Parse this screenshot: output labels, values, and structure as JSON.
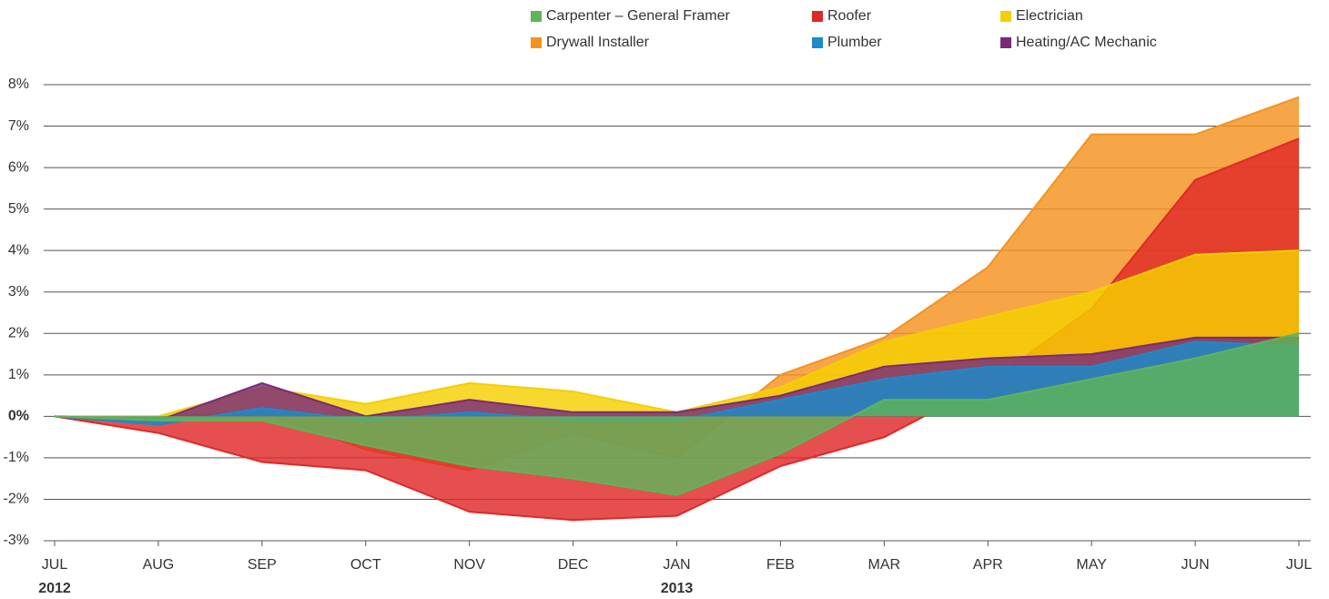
{
  "chart_data": {
    "type": "area",
    "categories": [
      "JUL",
      "AUG",
      "SEP",
      "OCT",
      "NOV",
      "DEC",
      "JAN",
      "FEB",
      "MAR",
      "APR",
      "MAY",
      "JUN",
      "JUL"
    ],
    "x_sublabels": [
      "2012",
      null,
      null,
      null,
      null,
      null,
      "2013",
      null,
      null,
      null,
      null,
      null,
      null
    ],
    "series": [
      {
        "name": "Carpenter – General Framer",
        "color": "#5fb45a",
        "values": [
          0,
          -0.1,
          -0.1,
          -0.7,
          -1.2,
          -1.5,
          -1.9,
          -0.9,
          0.4,
          0.4,
          0.9,
          1.4,
          2.0
        ]
      },
      {
        "name": "Roofer",
        "color": "#e02828",
        "values": [
          0,
          -0.4,
          -1.1,
          -1.3,
          -2.3,
          -2.5,
          -2.4,
          -1.2,
          -0.5,
          0.8,
          2.6,
          5.7,
          6.7
        ]
      },
      {
        "name": "Electrician",
        "color": "#f5cf00",
        "values": [
          0,
          0,
          0.7,
          0.3,
          0.8,
          0.6,
          0.1,
          0.7,
          1.8,
          2.4,
          3.0,
          3.9,
          4.0
        ]
      },
      {
        "name": "Drywall Installer",
        "color": "#f5921e",
        "values": [
          0,
          0,
          0.1,
          -0.8,
          -1.3,
          -0.4,
          -1.0,
          1.0,
          1.9,
          3.6,
          6.8,
          6.8,
          7.7
        ]
      },
      {
        "name": "Plumber",
        "color": "#1a8bcb",
        "values": [
          0,
          -0.2,
          0.2,
          -0.1,
          0.1,
          -0.1,
          -0.1,
          0.4,
          0.9,
          1.2,
          1.2,
          1.8,
          1.7
        ]
      },
      {
        "name": "Heating/AC Mechanic",
        "color": "#7a2a7a",
        "values": [
          0,
          -0.1,
          0.8,
          0,
          0.4,
          0.1,
          0.1,
          0.5,
          1.2,
          1.4,
          1.5,
          1.9,
          1.9
        ]
      }
    ],
    "ylim": [
      -3,
      8
    ],
    "yticks": [
      {
        "value": -3,
        "label": "-3%"
      },
      {
        "value": -2,
        "label": "-2%"
      },
      {
        "value": -1,
        "label": "-1%"
      },
      {
        "value": 0,
        "label": "0%"
      },
      {
        "value": 1,
        "label": "1%"
      },
      {
        "value": 2,
        "label": "2%"
      },
      {
        "value": 3,
        "label": "3%"
      },
      {
        "value": 4,
        "label": "4%"
      },
      {
        "value": 5,
        "label": "5%"
      },
      {
        "value": 6,
        "label": "6%"
      },
      {
        "value": 7,
        "label": "7%"
      },
      {
        "value": 8,
        "label": "8%"
      }
    ],
    "grid": true
  }
}
